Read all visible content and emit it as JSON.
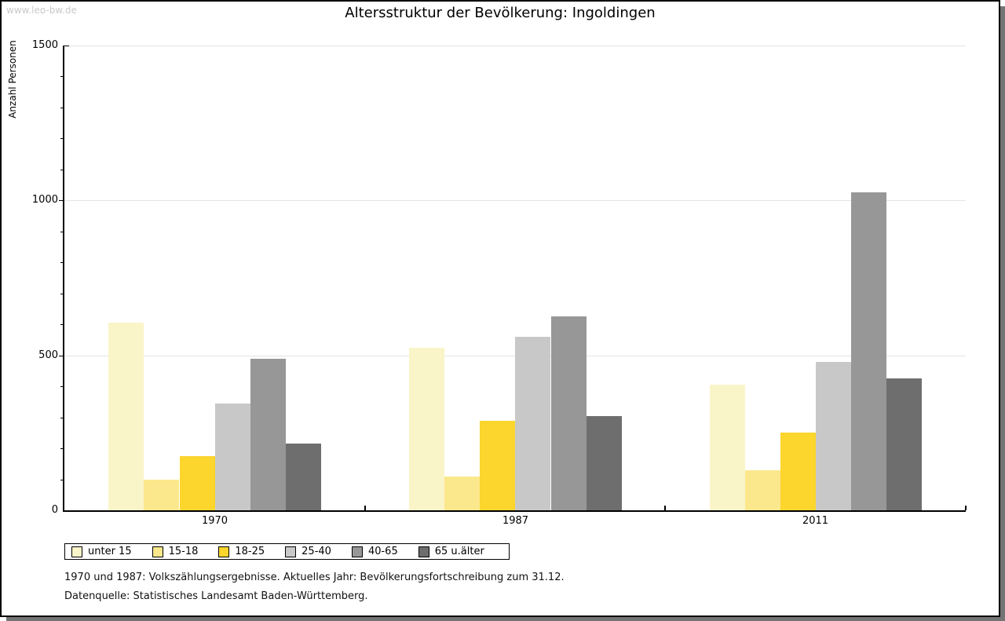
{
  "watermark": "www.leo-bw.de",
  "title": "Altersstruktur der Bevölkerung: Ingoldingen",
  "footnotes": [
    "1970 und 1987: Volkszählungsergebnisse. Aktuelles Jahr: Bevölkerungsfortschreibung zum 31.12.",
    "Datenquelle: Statistisches Landesamt Baden-Württemberg."
  ],
  "chart_data": {
    "type": "bar",
    "title": "Altersstruktur der Bevölkerung: Ingoldingen",
    "ylabel": "Anzahl Personen",
    "xlabel": "",
    "ylim": [
      0,
      1500
    ],
    "yticks_major": [
      0,
      500,
      1000,
      1500
    ],
    "ytick_minor_step": 100,
    "grid": true,
    "legend_position": "bottom-left",
    "categories": [
      "1970",
      "1987",
      "2011"
    ],
    "series": [
      {
        "name": "unter 15",
        "color": "#FAF4C9",
        "values": [
          605,
          525,
          405
        ]
      },
      {
        "name": "15-18",
        "color": "#FBE88C",
        "values": [
          100,
          110,
          130
        ]
      },
      {
        "name": "18-25",
        "color": "#FCD52D",
        "values": [
          175,
          290,
          250
        ]
      },
      {
        "name": "25-40",
        "color": "#C8C8C8",
        "values": [
          345,
          560,
          480
        ]
      },
      {
        "name": "40-65",
        "color": "#979797",
        "values": [
          490,
          625,
          1025
        ]
      },
      {
        "name": "65 u.älter",
        "color": "#6E6E6E",
        "values": [
          215,
          305,
          425
        ]
      }
    ]
  },
  "colors": {
    "grid": "#E4E4E4",
    "axis": "#000000",
    "watermark": "#C9C9C9",
    "shadow": "#747474"
  }
}
